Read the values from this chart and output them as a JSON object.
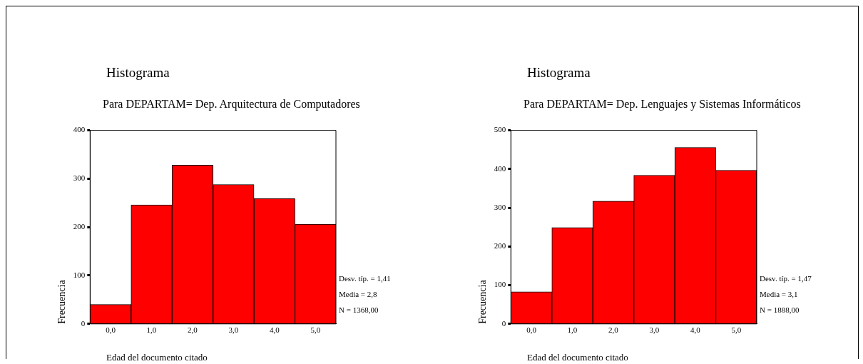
{
  "chart_data": [
    {
      "type": "histogram",
      "title": "Histograma",
      "subtitle": "Para DEPARTAM= Dep. Arquitectura de Computadores",
      "xlabel": "Edad del documento citado",
      "ylabel": "Frecuencia",
      "bins": [
        -0.5,
        0.5,
        1.5,
        2.5,
        3.5,
        4.5,
        5.5
      ],
      "values": [
        40,
        246,
        328,
        288,
        259,
        206
      ],
      "color": "#ff0000",
      "xlim": [
        -0.5,
        5.5
      ],
      "xticks": [
        {
          "value": 0,
          "label": "0,0"
        },
        {
          "value": 1,
          "label": "1,0"
        },
        {
          "value": 2,
          "label": "2,0"
        },
        {
          "value": 3,
          "label": "3,0"
        },
        {
          "value": 4,
          "label": "4,0"
        },
        {
          "value": 5,
          "label": "5,0"
        }
      ],
      "ylim": [
        0,
        400
      ],
      "yticks": [
        0,
        100,
        200,
        300,
        400
      ],
      "grid": false,
      "legend": false,
      "annotations": [
        "Desv. típ. = 1,41",
        "Media = 2,8",
        "N = 1368,00"
      ]
    },
    {
      "type": "histogram",
      "title": "Histograma",
      "subtitle": "Para DEPARTAM= Dep. Lenguajes y Sistemas Informáticos",
      "xlabel": "Edad del documento citado",
      "ylabel": "Frecuencia",
      "bins": [
        -0.5,
        0.5,
        1.5,
        2.5,
        3.5,
        4.5,
        5.5
      ],
      "values": [
        83,
        249,
        317,
        384,
        456,
        397
      ],
      "color": "#ff0000",
      "xlim": [
        -0.5,
        5.5
      ],
      "xticks": [
        {
          "value": 0,
          "label": "0,0"
        },
        {
          "value": 1,
          "label": "1,0"
        },
        {
          "value": 2,
          "label": "2,0"
        },
        {
          "value": 3,
          "label": "3,0"
        },
        {
          "value": 4,
          "label": "4,0"
        },
        {
          "value": 5,
          "label": "5,0"
        }
      ],
      "ylim": [
        0,
        500
      ],
      "yticks": [
        0,
        100,
        200,
        300,
        400,
        500
      ],
      "grid": false,
      "legend": false,
      "annotations": [
        "Desv. típ. = 1,47",
        "Media = 3,1",
        "N = 1888,00"
      ]
    }
  ]
}
